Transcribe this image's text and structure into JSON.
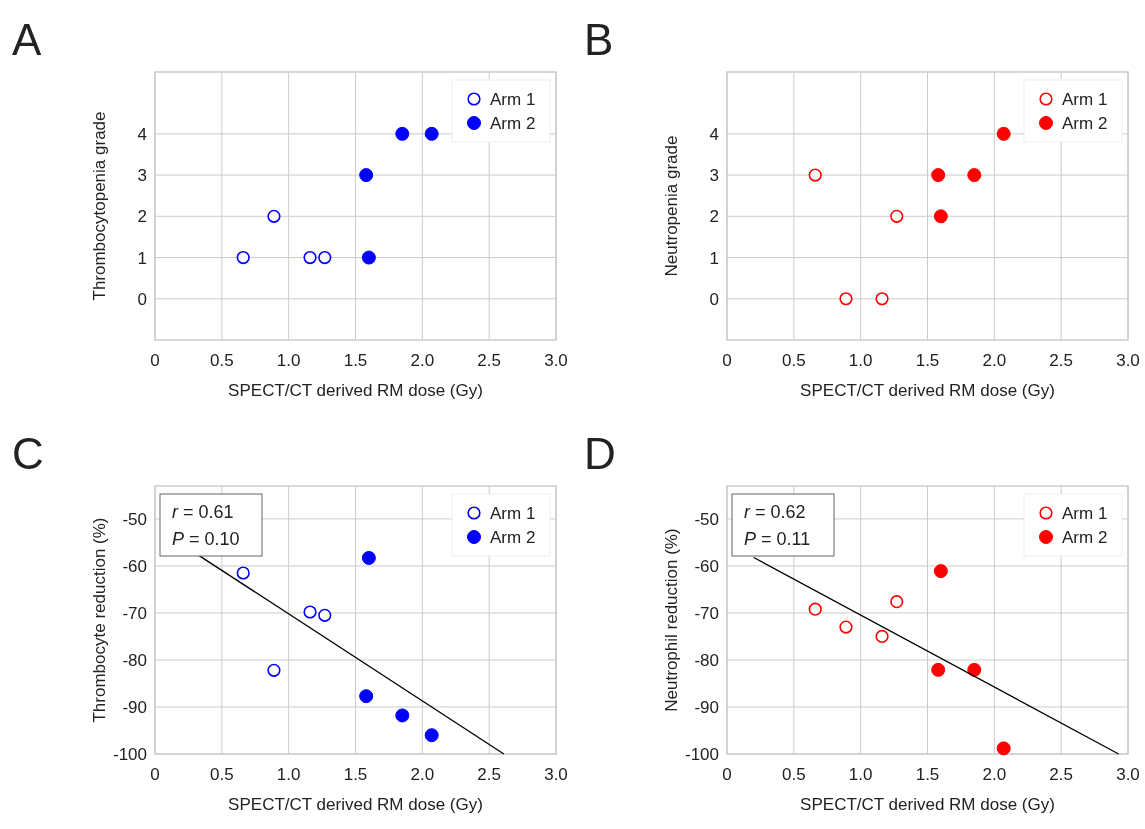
{
  "chart_data": [
    {
      "type": "scatter",
      "title": "A",
      "xlabel": "SPECT/CT derived RM dose (Gy)",
      "ylabel": "Thrombocytopenia grade",
      "xlim": [
        0,
        3
      ],
      "xticks": [
        0,
        0.5,
        {
          "value": 1,
          "label": "1.0"
        },
        1.5,
        {
          "value": 2,
          "label": "2.0"
        },
        2.5,
        {
          "value": 3,
          "label": "3.0"
        }
      ],
      "ylim": [
        -1,
        5.5
      ],
      "yticks": [
        0,
        1,
        2,
        3,
        4
      ],
      "grid": true,
      "legend": "top right",
      "series": [
        {
          "name": "Arm 1",
          "color": "#0000ff",
          "marker": "circle-open",
          "x": [
            0.66,
            0.89,
            1.16,
            1.27
          ],
          "values": [
            1,
            2,
            1,
            1
          ]
        },
        {
          "name": "Arm 2",
          "color": "#0000ff",
          "marker": "circle",
          "x": [
            1.58,
            1.6,
            1.85,
            2.07
          ],
          "values": [
            3,
            1,
            4,
            4
          ]
        }
      ]
    },
    {
      "type": "scatter",
      "title": "B",
      "xlabel": "SPECT/CT derived RM dose (Gy)",
      "ylabel": "Neutropenia grade",
      "xlim": [
        0,
        3
      ],
      "xticks": [
        0,
        0.5,
        {
          "value": 1,
          "label": "1.0"
        },
        1.5,
        {
          "value": 2,
          "label": "2.0"
        },
        2.5,
        {
          "value": 3,
          "label": "3.0"
        }
      ],
      "ylim": [
        -1,
        5.5
      ],
      "yticks": [
        0,
        1,
        2,
        3,
        4
      ],
      "grid": true,
      "legend": "top right",
      "series": [
        {
          "name": "Arm 1",
          "color": "#ff0000",
          "marker": "circle-open",
          "x": [
            0.66,
            0.89,
            1.16,
            1.27
          ],
          "values": [
            3,
            0,
            0,
            2
          ]
        },
        {
          "name": "Arm 2",
          "color": "#ff0000",
          "marker": "circle",
          "x": [
            1.58,
            1.6,
            1.85,
            2.07
          ],
          "values": [
            3,
            2,
            3,
            4
          ]
        }
      ]
    },
    {
      "type": "scatter",
      "title": "C",
      "xlabel": "SPECT/CT derived RM dose (Gy)",
      "ylabel": "Thrombocyte reduction (%)",
      "xlim": [
        0,
        3
      ],
      "xticks": [
        0,
        0.5,
        {
          "value": 1,
          "label": "1.0"
        },
        1.5,
        {
          "value": 2,
          "label": "2.0"
        },
        2.5,
        {
          "value": 3,
          "label": "3.0"
        }
      ],
      "ylim": [
        -100,
        -43
      ],
      "yticks": [
        -100,
        -90,
        -80,
        -70,
        -60,
        -50
      ],
      "grid": true,
      "legend": "top right",
      "annotations": [
        "r = 0.61",
        "P = 0.10"
      ],
      "series": [
        {
          "name": "Arm 1",
          "color": "#0000ff",
          "marker": "circle-open",
          "x": [
            0.66,
            0.89,
            1.16,
            1.27
          ],
          "values": [
            -61.5,
            -82.2,
            -69.8,
            -70.5
          ]
        },
        {
          "name": "Arm 2",
          "color": "#0000ff",
          "marker": "circle",
          "x": [
            1.58,
            1.6,
            1.85,
            2.07
          ],
          "values": [
            -87.7,
            -58.3,
            -91.8,
            -96
          ]
        },
        {
          "type": "line",
          "color": "#000000",
          "marker": "none",
          "x": [
            0.33,
            2.61
          ],
          "values": [
            -57.8,
            -100
          ]
        }
      ]
    },
    {
      "type": "scatter",
      "title": "D",
      "xlabel": "SPECT/CT derived RM dose (Gy)",
      "ylabel": "Neutrophil reduction (%)",
      "xlim": [
        0,
        3
      ],
      "xticks": [
        0,
        0.5,
        {
          "value": 1,
          "label": "1.0"
        },
        1.5,
        {
          "value": 2,
          "label": "2.0"
        },
        2.5,
        {
          "value": 3,
          "label": "3.0"
        }
      ],
      "ylim": [
        -100,
        -43
      ],
      "yticks": [
        -100,
        -90,
        -80,
        -70,
        -60,
        -50
      ],
      "grid": true,
      "legend": "top right",
      "annotations": [
        "r = 0.62",
        "P = 0.11"
      ],
      "series": [
        {
          "name": "Arm 1",
          "color": "#ff0000",
          "marker": "circle-open",
          "x": [
            0.66,
            0.89,
            1.16,
            1.27
          ],
          "values": [
            -69.2,
            -73,
            -75,
            -67.6
          ]
        },
        {
          "name": "Arm 2",
          "color": "#ff0000",
          "marker": "circle",
          "x": [
            1.58,
            1.6,
            1.85,
            2.07
          ],
          "values": [
            -82.1,
            -61.1,
            -82.1,
            -98.8
          ]
        },
        {
          "type": "line",
          "color": "#000000",
          "marker": "none",
          "x": [
            0.2,
            2.93
          ],
          "values": [
            -58.2,
            -100
          ]
        }
      ]
    }
  ]
}
